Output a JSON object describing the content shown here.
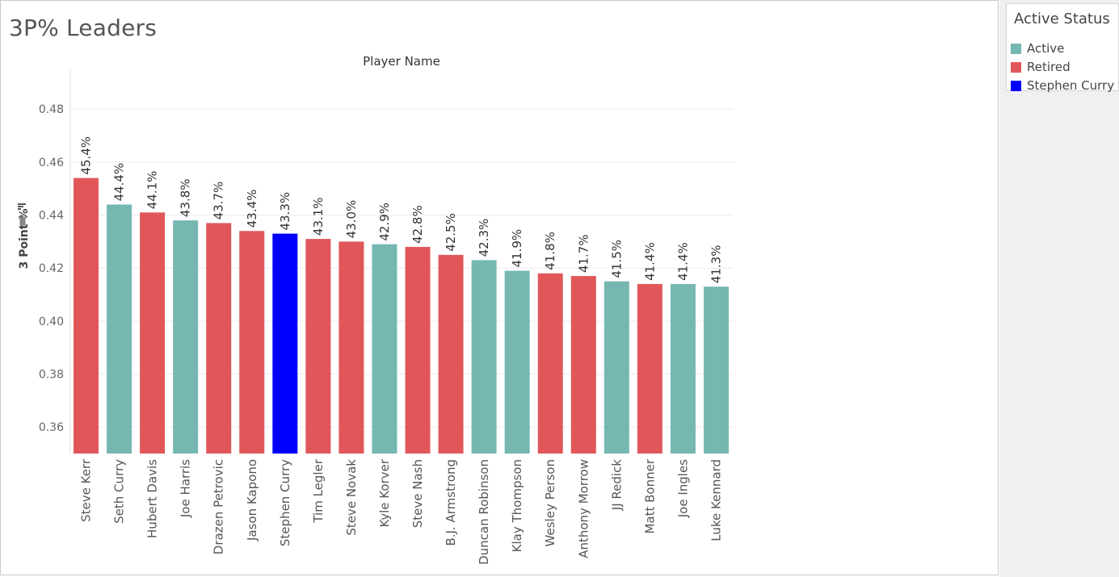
{
  "title": "3P% Leaders",
  "legend": {
    "title": "Active Status",
    "items": [
      {
        "label": "Active",
        "color": "#76b7b2"
      },
      {
        "label": "Retired",
        "color": "#e15759"
      },
      {
        "label": "Stephen Curry",
        "color": "#0000ff"
      }
    ]
  },
  "chart_data": {
    "type": "bar",
    "title": "3P% Leaders",
    "xlabel": "Player Name",
    "ylabel": "3 Point %",
    "ylim": [
      0.35,
      0.495
    ],
    "yticks": [
      0.36,
      0.38,
      0.4,
      0.42,
      0.44,
      0.46,
      0.48
    ],
    "ytick_labels": [
      "0.36",
      "0.38",
      "0.40",
      "0.42",
      "0.44",
      "0.46",
      "0.48"
    ],
    "grid": true,
    "legend_position": "right",
    "categories": [
      "Steve Kerr",
      "Seth Curry",
      "Hubert Davis",
      "Joe Harris",
      "Drazen Petrovic",
      "Jason Kapono",
      "Stephen Curry",
      "Tim Legler",
      "Steve Novak",
      "Kyle Korver",
      "Steve Nash",
      "B.J. Armstrong",
      "Duncan Robinson",
      "Klay Thompson",
      "Wesley Person",
      "Anthony Morrow",
      "JJ Redick",
      "Matt Bonner",
      "Joe Ingles",
      "Luke Kennard"
    ],
    "values": [
      0.454,
      0.444,
      0.441,
      0.438,
      0.437,
      0.434,
      0.433,
      0.431,
      0.43,
      0.429,
      0.428,
      0.425,
      0.423,
      0.419,
      0.418,
      0.417,
      0.415,
      0.414,
      0.414,
      0.413
    ],
    "labels": [
      "45.4%",
      "44.4%",
      "44.1%",
      "43.8%",
      "43.7%",
      "43.4%",
      "43.3%",
      "43.1%",
      "43.0%",
      "42.9%",
      "42.8%",
      "42.5%",
      "42.3%",
      "41.9%",
      "41.8%",
      "41.7%",
      "41.5%",
      "41.4%",
      "41.4%",
      "41.3%"
    ],
    "status": [
      "Retired",
      "Active",
      "Retired",
      "Active",
      "Retired",
      "Retired",
      "Stephen Curry",
      "Retired",
      "Retired",
      "Active",
      "Retired",
      "Retired",
      "Active",
      "Active",
      "Retired",
      "Retired",
      "Active",
      "Retired",
      "Active",
      "Active"
    ]
  }
}
